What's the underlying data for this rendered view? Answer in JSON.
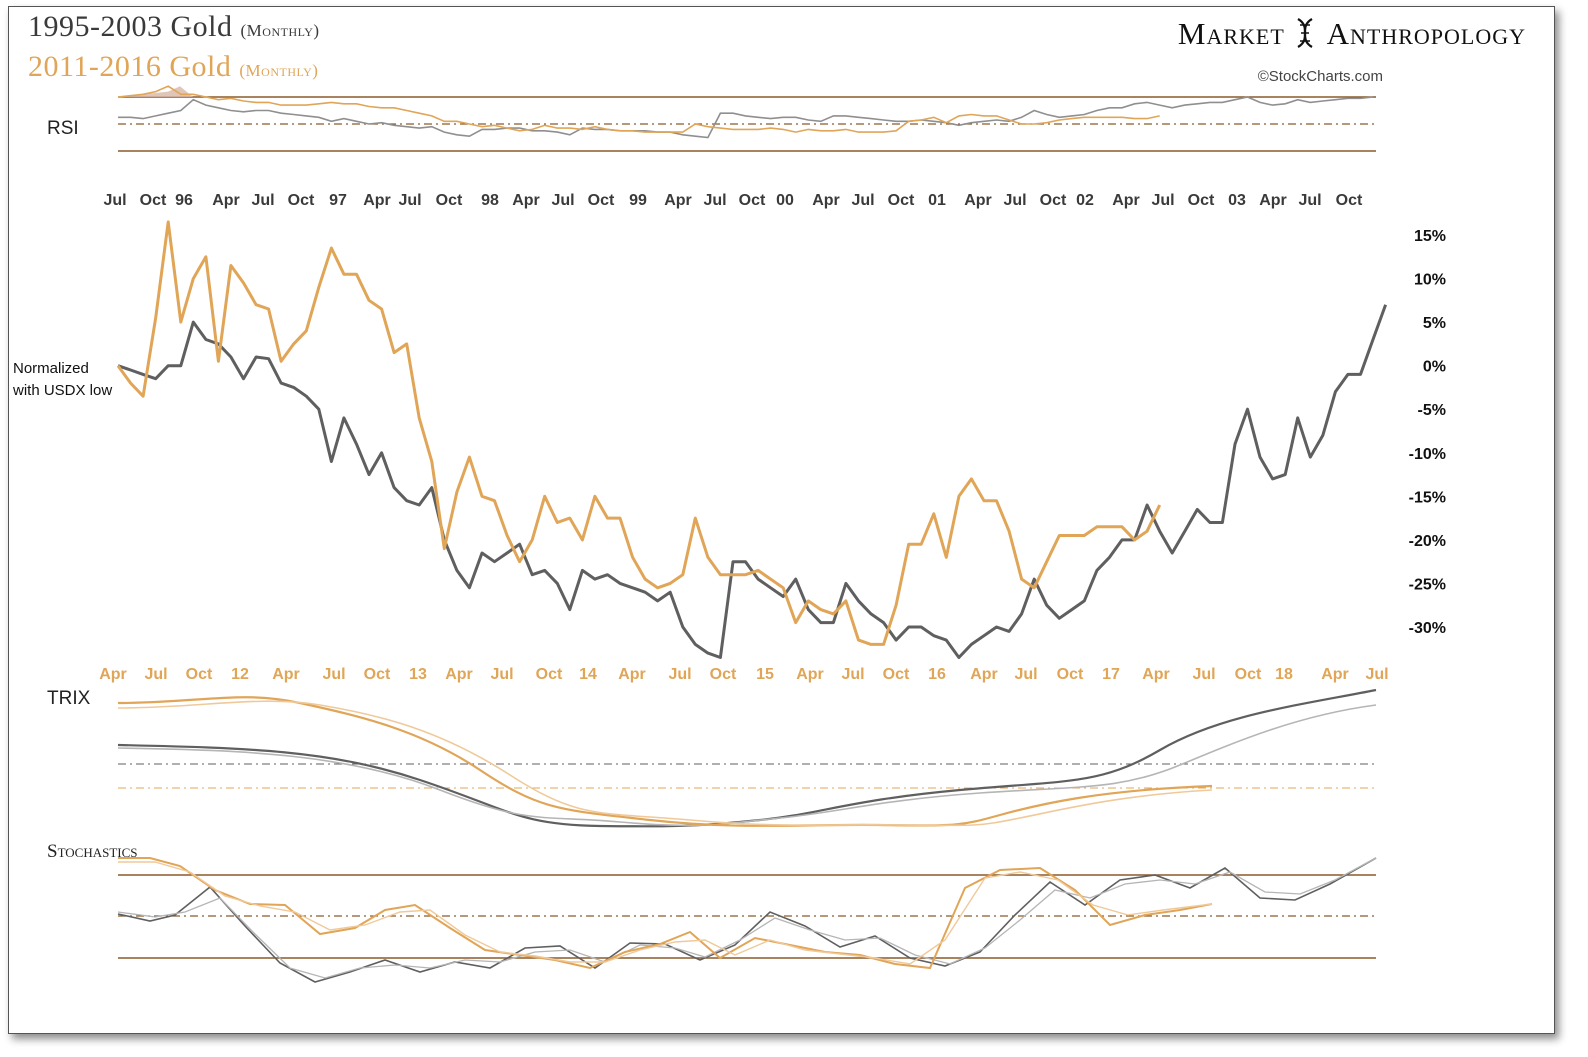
{
  "header": {
    "title_1": "1995-2003 Gold",
    "title_1_sub": "(Monthly)",
    "title_2": "2011-2016  Gold",
    "title_2_sub": "(Monthly)",
    "brand_left": "Market",
    "brand_right": "Anthropology",
    "copyright": "©StockCharts.com"
  },
  "colors": {
    "series_1995": "#5f5f5f",
    "series_2011": "#e0a557",
    "indicator_line": "#8b5a2b",
    "top_axis_text": "#3a3a3a",
    "bottom_axis_text": "#e0a557"
  },
  "panels": {
    "rsi_label": "RSI",
    "trix_label": "TRIX",
    "stochastics_label": "Stochastics"
  },
  "annotation": {
    "line1": "Normalized",
    "line2": "with USDX low"
  },
  "chart_data": {
    "type": "line",
    "ylim": [
      -32,
      16
    ],
    "y_ticks": [
      "15%",
      "10%",
      "5%",
      "0%",
      "-5%",
      "-10%",
      "-15%",
      "-20%",
      "-25%",
      "-30%"
    ],
    "y_tick_values": [
      15,
      10,
      5,
      0,
      -5,
      -10,
      -15,
      -20,
      -25,
      -30
    ],
    "top_axis_labels": [
      "Jul",
      "Oct",
      "96",
      "Apr",
      "Jul",
      "Oct",
      "97",
      "Apr",
      "Jul",
      "Oct",
      "98",
      "Apr",
      "Jul",
      "Oct",
      "99",
      "Apr",
      "Jul",
      "Oct",
      "00",
      "Apr",
      "Jul",
      "Oct",
      "01",
      "Apr",
      "Jul",
      "Oct",
      "02",
      "Apr",
      "Jul",
      "Oct",
      "03",
      "Apr",
      "Jul",
      "Oct"
    ],
    "bottom_axis_labels": [
      "Apr",
      "Jul",
      "Oct",
      "12",
      "Apr",
      "Jul",
      "Oct",
      "13",
      "Apr",
      "Jul",
      "Oct",
      "14",
      "Apr",
      "Jul",
      "Oct",
      "15",
      "Apr",
      "Jul",
      "Oct",
      "16",
      "Apr",
      "Jul",
      "Oct",
      "17",
      "Apr",
      "Jul",
      "Oct",
      "18",
      "Apr",
      "Jul"
    ],
    "series": [
      {
        "name": "1995-2003 Gold (Monthly)",
        "color": "#5f5f5f",
        "values": [
          0,
          -0.5,
          -1,
          -1.5,
          0,
          0,
          5,
          3,
          2.5,
          1,
          -1.5,
          1,
          0.8,
          -2,
          -2.5,
          -3.5,
          -5,
          -11,
          -6,
          -9,
          -12.5,
          -10,
          -14,
          -15.5,
          -16,
          -14,
          -20,
          -23.5,
          -25.5,
          -21.5,
          -22.5,
          -21.5,
          -20.5,
          -24,
          -23.5,
          -25,
          -28,
          -23.5,
          -24.5,
          -24,
          -25,
          -25.5,
          -26,
          -27,
          -26,
          -30,
          -32,
          -33,
          -33.5,
          -22.5,
          -22.5,
          -24.5,
          -25.5,
          -26.5,
          -24.5,
          -28,
          -29.5,
          -29.5,
          -25,
          -27,
          -28.5,
          -29.5,
          -31.5,
          -30,
          -30,
          -31,
          -31.5,
          -33.5,
          -32,
          -31,
          -30,
          -30.5,
          -28.5,
          -24.5,
          -27.5,
          -29,
          -28,
          -27,
          -23.5,
          -22,
          -20,
          -20,
          -16,
          -19,
          -21.5,
          -19,
          -16.5,
          -18,
          -18,
          -9,
          -5,
          -10.5,
          -13,
          -12.5,
          -6,
          -10.5,
          -8,
          -3,
          -1,
          -1,
          3,
          7
        ],
        "rsi_values": [
          55,
          55,
          54,
          56,
          58,
          60,
          68,
          64,
          62,
          60,
          59,
          60,
          60,
          58,
          57,
          56,
          55,
          52,
          54,
          52,
          50,
          51,
          49,
          48,
          47,
          48,
          44,
          42,
          41,
          46,
          46,
          47,
          47,
          45,
          45,
          44,
          42,
          47,
          46,
          46,
          45,
          45,
          45,
          44,
          44,
          42,
          41,
          40,
          58,
          58,
          56,
          55,
          54,
          55,
          55,
          53,
          52,
          56,
          56,
          55,
          54,
          53,
          52,
          52,
          53,
          52,
          51,
          49,
          51,
          52,
          53,
          52,
          55,
          60,
          57,
          55,
          56,
          57,
          60,
          62,
          62,
          65,
          66,
          64,
          62,
          64,
          65,
          66,
          66,
          68,
          70,
          66,
          64,
          65,
          68,
          66,
          67,
          68,
          69,
          69,
          70
        ]
      },
      {
        "name": "2011-2016 Gold (Monthly)",
        "color": "#e0a557",
        "values": [
          0,
          -2,
          -3.5,
          5.5,
          16.5,
          5,
          10,
          12.5,
          0.5,
          11.5,
          9.5,
          7,
          6.5,
          0.5,
          2.5,
          4,
          9,
          13.5,
          10.5,
          10.5,
          7.5,
          6.5,
          1.5,
          2.5,
          -6,
          -11,
          -21,
          -14.5,
          -10.5,
          -15,
          -15.5,
          -19.5,
          -22.5,
          -20,
          -15,
          -18,
          -17.5,
          -20,
          -15,
          -17.5,
          -17.5,
          -22,
          -24.5,
          -25.5,
          -25,
          -24,
          -17.5,
          -22,
          -24,
          -24,
          -24,
          -23.5,
          -24.5,
          -25.5,
          -29.5,
          -27,
          -28,
          -28.5,
          -27,
          -31.5,
          -32,
          -32,
          -27.5,
          -20.5,
          -20.5,
          -17,
          -22,
          -15,
          -13,
          -15.5,
          -15.5,
          -19,
          -24.5,
          -25.5,
          -22.5,
          -19.5,
          -19.5,
          -19.5,
          -18.5,
          -18.5,
          -18.5,
          -20,
          -19,
          -16
        ],
        "rsi_values": [
          70,
          71,
          72,
          74,
          78,
          72,
          72,
          70,
          68,
          69,
          67,
          66,
          66,
          64,
          64,
          64,
          65,
          66,
          65,
          65,
          63,
          62,
          62,
          60,
          58,
          56,
          52,
          52,
          50,
          48,
          49,
          47,
          45,
          46,
          49,
          47,
          47,
          46,
          48,
          46,
          45,
          45,
          44,
          44,
          44,
          44,
          50,
          48,
          47,
          46,
          46,
          46,
          47,
          46,
          44,
          46,
          45,
          45,
          46,
          44,
          44,
          44,
          45,
          52,
          53,
          55,
          51,
          56,
          57,
          56,
          56,
          53,
          50,
          50,
          51,
          53,
          54,
          55,
          55,
          55,
          55,
          54,
          54,
          56
        ]
      }
    ]
  }
}
